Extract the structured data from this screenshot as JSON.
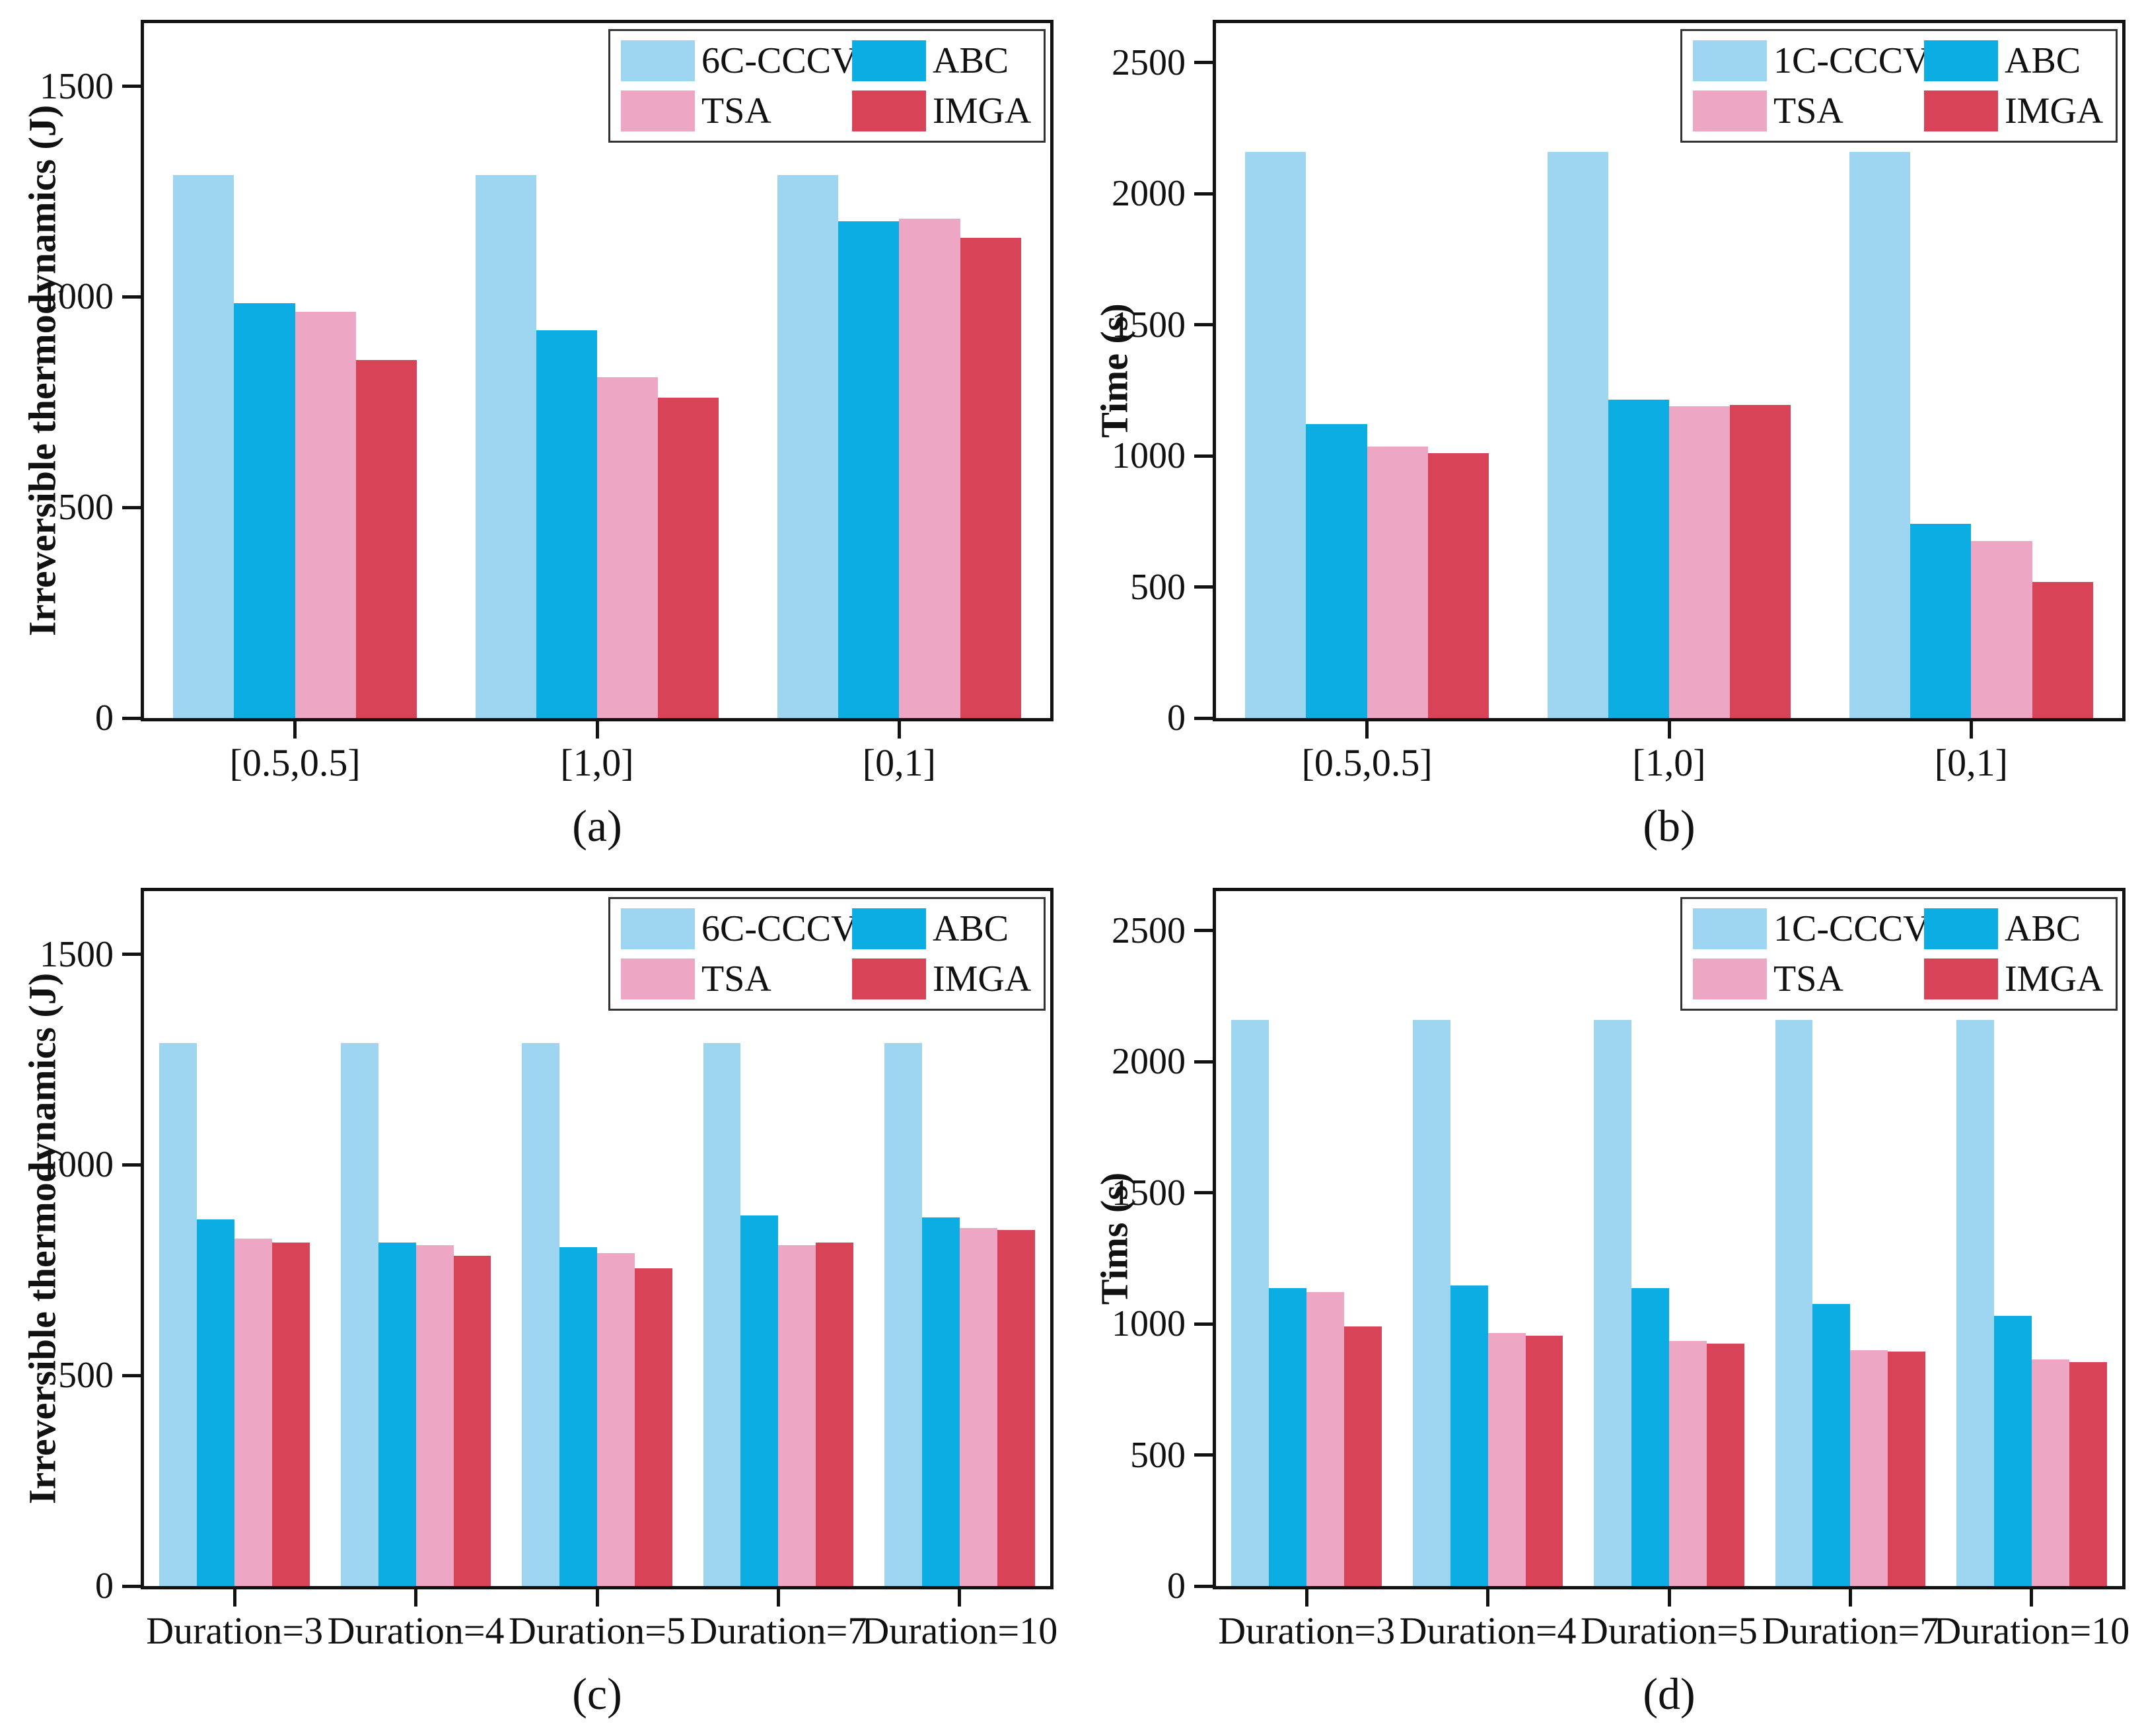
{
  "chart_data": [
    {
      "type": "bar",
      "caption": "(a)",
      "ylabel": "Irreversible thermodynamics (J)",
      "xlabel": "",
      "ylim": [
        0,
        1650
      ],
      "yticks": [
        0,
        500,
        1000,
        1500
      ],
      "grid": "off",
      "legend_position": "top-right-inside",
      "categories": [
        "[0.5,0.5]",
        "[1,0]",
        "[0,1]"
      ],
      "series": [
        {
          "name": "6C-CCCV",
          "color": "#9ed6f1",
          "values": [
            1290,
            1290,
            1290
          ]
        },
        {
          "name": "ABC",
          "color": "#0bade3",
          "values": [
            985,
            920,
            1180
          ]
        },
        {
          "name": "TSA",
          "color": "#eda6c4",
          "values": [
            965,
            810,
            1185
          ]
        },
        {
          "name": "IMGA",
          "color": "#d84357",
          "values": [
            850,
            760,
            1140
          ]
        }
      ]
    },
    {
      "type": "bar",
      "caption": "(b)",
      "ylabel": "Time (s)",
      "xlabel": "",
      "ylim": [
        0,
        2650
      ],
      "yticks": [
        0,
        500,
        1000,
        1500,
        2000,
        2500
      ],
      "grid": "off",
      "legend_position": "top-right-inside",
      "categories": [
        "[0.5,0.5]",
        "[1,0]",
        "[0,1]"
      ],
      "series": [
        {
          "name": "1C-CCCV",
          "color": "#9ed6f1",
          "values": [
            2160,
            2160,
            2160
          ]
        },
        {
          "name": "ABC",
          "color": "#0bade3",
          "values": [
            1120,
            1215,
            740
          ]
        },
        {
          "name": "TSA",
          "color": "#eda6c4",
          "values": [
            1035,
            1190,
            675
          ]
        },
        {
          "name": "IMGA",
          "color": "#d84357",
          "values": [
            1010,
            1195,
            520
          ]
        }
      ]
    },
    {
      "type": "bar",
      "caption": "(c)",
      "ylabel": "Irreversible thermodynamics (J)",
      "xlabel": "",
      "ylim": [
        0,
        1650
      ],
      "yticks": [
        0,
        500,
        1000,
        1500
      ],
      "grid": "off",
      "legend_position": "top-right-inside",
      "categories": [
        "Duration=3",
        "Duration=4",
        "Duration=5",
        "Duration=7",
        "Duration=10"
      ],
      "series": [
        {
          "name": "6C-CCCV",
          "color": "#9ed6f1",
          "values": [
            1290,
            1290,
            1290,
            1290,
            1290
          ]
        },
        {
          "name": "ABC",
          "color": "#0bade3",
          "values": [
            870,
            815,
            805,
            880,
            875
          ]
        },
        {
          "name": "TSA",
          "color": "#eda6c4",
          "values": [
            825,
            810,
            790,
            810,
            850
          ]
        },
        {
          "name": "IMGA",
          "color": "#d84357",
          "values": [
            815,
            785,
            755,
            815,
            845
          ]
        }
      ]
    },
    {
      "type": "bar",
      "caption": "(d)",
      "ylabel": "Tims (s)",
      "xlabel": "",
      "ylim": [
        0,
        2650
      ],
      "yticks": [
        0,
        500,
        1000,
        1500,
        2000,
        2500
      ],
      "grid": "off",
      "legend_position": "top-right-inside",
      "categories": [
        "Duration=3",
        "Duration=4",
        "Duration=5",
        "Duration=7",
        "Duration=10"
      ],
      "series": [
        {
          "name": "1C-CCCV",
          "color": "#9ed6f1",
          "values": [
            2160,
            2160,
            2160,
            2160,
            2160
          ]
        },
        {
          "name": "ABC",
          "color": "#0bade3",
          "values": [
            1135,
            1145,
            1135,
            1075,
            1030
          ]
        },
        {
          "name": "TSA",
          "color": "#eda6c4",
          "values": [
            1120,
            965,
            935,
            900,
            865
          ]
        },
        {
          "name": "IMGA",
          "color": "#d84357",
          "values": [
            990,
            955,
            925,
            895,
            855
          ]
        }
      ]
    }
  ]
}
